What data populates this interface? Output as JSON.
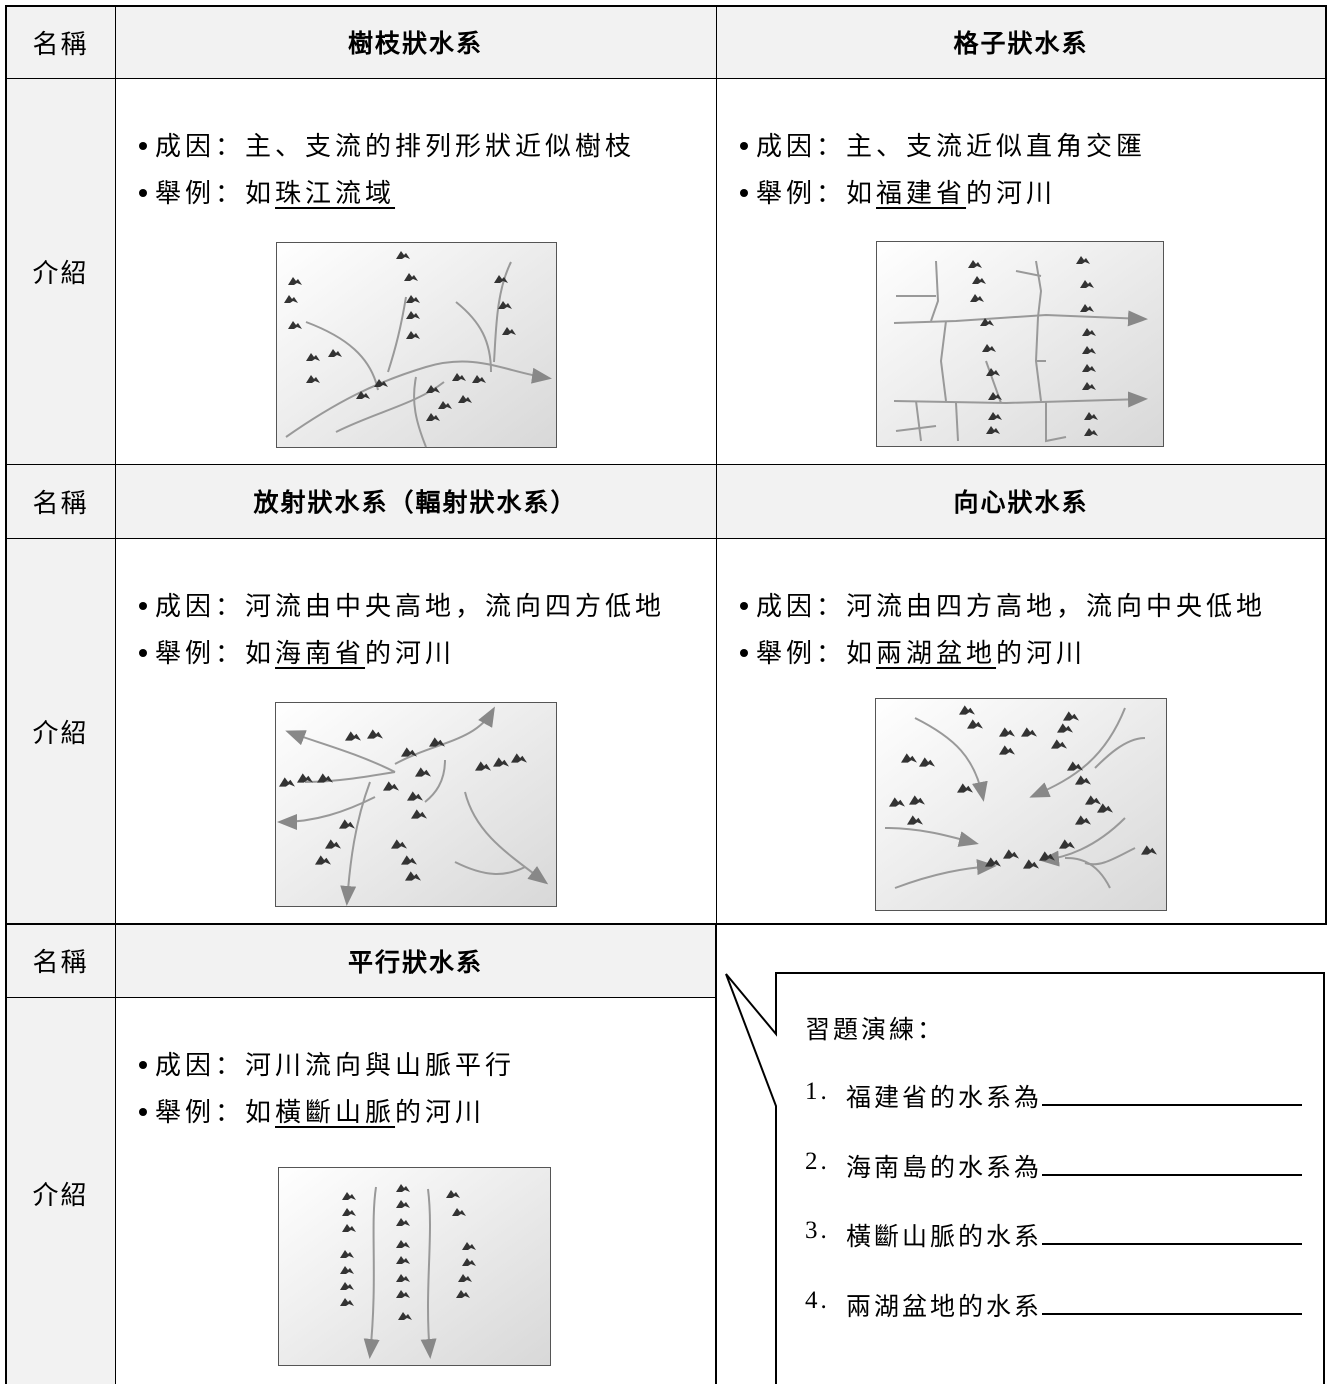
{
  "rows": [
    {
      "name_label": "名稱",
      "intro_label": "介紹",
      "cells": [
        {
          "name": "樹枝狀水系",
          "cause": "成因：主、支流的排列形狀近似樹枝",
          "example_prefix": "舉例：如",
          "example_place": "珠江流域"
        },
        {
          "name": "格子狀水系",
          "cause": "成因：主、支流近似直角交匯",
          "example_prefix": "舉例：如",
          "example_place": "福建省",
          "example_suffix": "的河川"
        }
      ]
    },
    {
      "name_label": "名稱",
      "intro_label": "介紹",
      "cells": [
        {
          "name": "放射狀水系（輻射狀水系）",
          "cause": "成因：河流由中央高地，流向四方低地",
          "example_prefix": "舉例：如",
          "example_place": "海南省",
          "example_suffix": "的河川"
        },
        {
          "name": "向心狀水系",
          "cause": "成因：河流由四方高地，流向中央低地",
          "example_prefix": "舉例：如",
          "example_place": "兩湖盆地",
          "example_suffix": "的河川"
        }
      ]
    },
    {
      "name_label": "名稱",
      "intro_label": "介紹",
      "cells": [
        {
          "name": "平行狀水系",
          "cause": "成因：河川流向與山脈平行",
          "example_prefix": "舉例：如",
          "example_place": "橫斷山脈",
          "example_suffix": "的河川"
        }
      ]
    }
  ],
  "exercise": {
    "title": "習題演練：",
    "items": [
      {
        "number": "1.",
        "text": "福建省的水系為"
      },
      {
        "number": "2.",
        "text": "海南島的水系為"
      },
      {
        "number": "3.",
        "text": "橫斷山脈的水系"
      },
      {
        "number": "4.",
        "text": "兩湖盆地的水系"
      }
    ]
  }
}
